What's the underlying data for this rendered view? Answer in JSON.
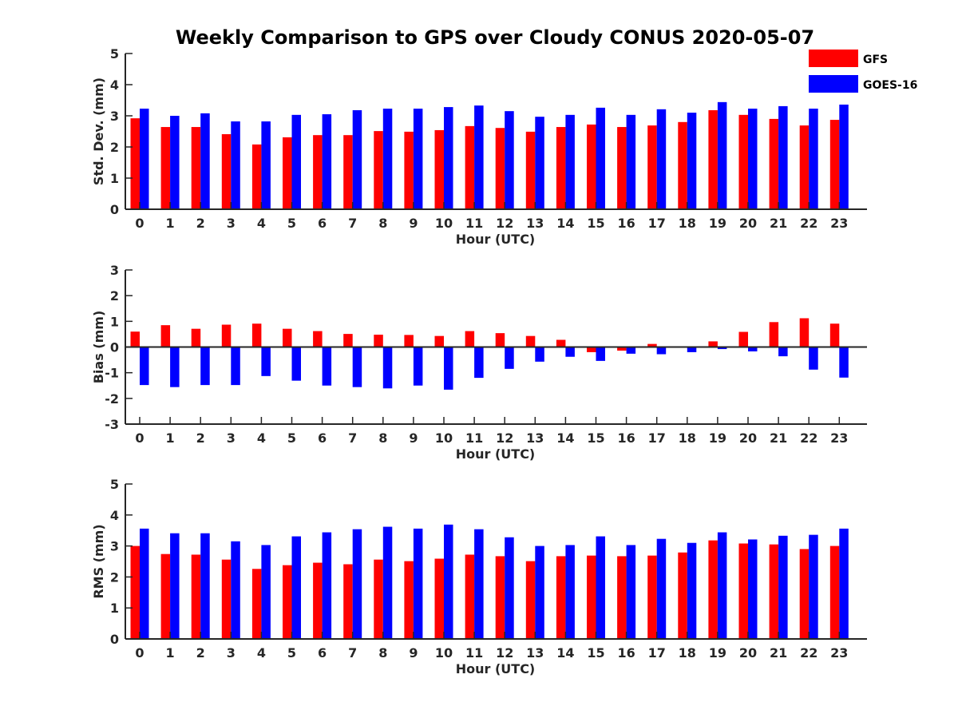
{
  "title": "Weekly Comparison to GPS over Cloudy CONUS 2020-05-07",
  "colors": {
    "GFS": "#ff0000",
    "GOES-16": "#0000ff",
    "axis": "#262626",
    "text": "#262626",
    "title": "#000000"
  },
  "legend": {
    "position": "top-right",
    "entries": [
      "GFS",
      "GOES-16"
    ]
  },
  "chart_data": [
    {
      "type": "bar",
      "xlabel": "Hour (UTC)",
      "ylabel": "Std. Dev. (mm)",
      "ylim": [
        0,
        5
      ],
      "yticks": [
        0,
        1,
        2,
        3,
        4,
        5
      ],
      "categories": [
        "0",
        "1",
        "2",
        "3",
        "4",
        "5",
        "6",
        "7",
        "8",
        "9",
        "10",
        "11",
        "12",
        "13",
        "14",
        "15",
        "16",
        "17",
        "18",
        "19",
        "20",
        "21",
        "22",
        "23"
      ],
      "series": [
        {
          "name": "GFS",
          "values": [
            2.92,
            2.64,
            2.64,
            2.41,
            2.08,
            2.31,
            2.38,
            2.38,
            2.51,
            2.49,
            2.54,
            2.67,
            2.61,
            2.49,
            2.64,
            2.72,
            2.64,
            2.69,
            2.8,
            3.18,
            3.03,
            2.9,
            2.69,
            2.87
          ]
        },
        {
          "name": "GOES-16",
          "values": [
            3.23,
            3.0,
            3.08,
            2.82,
            2.82,
            3.03,
            3.05,
            3.18,
            3.23,
            3.23,
            3.28,
            3.33,
            3.15,
            2.97,
            3.03,
            3.26,
            3.03,
            3.21,
            3.1,
            3.44,
            3.23,
            3.31,
            3.23,
            3.36
          ]
        }
      ]
    },
    {
      "type": "bar",
      "xlabel": "Hour (UTC)",
      "ylabel": "Bias (mm)",
      "ylim": [
        -3,
        3
      ],
      "yticks": [
        -3,
        -2,
        -1,
        0,
        1,
        2,
        3
      ],
      "categories": [
        "0",
        "1",
        "2",
        "3",
        "4",
        "5",
        "6",
        "7",
        "8",
        "9",
        "10",
        "11",
        "12",
        "13",
        "14",
        "15",
        "16",
        "17",
        "18",
        "19",
        "20",
        "21",
        "22",
        "23"
      ],
      "series": [
        {
          "name": "GFS",
          "values": [
            0.6,
            0.85,
            0.71,
            0.87,
            0.91,
            0.71,
            0.62,
            0.51,
            0.48,
            0.47,
            0.43,
            0.62,
            0.54,
            0.43,
            0.28,
            -0.2,
            -0.14,
            0.12,
            -0.03,
            0.22,
            0.59,
            0.97,
            1.12,
            0.91
          ]
        },
        {
          "name": "GOES-16",
          "values": [
            -1.48,
            -1.56,
            -1.48,
            -1.48,
            -1.13,
            -1.31,
            -1.5,
            -1.56,
            -1.61,
            -1.5,
            -1.66,
            -1.2,
            -0.85,
            -0.57,
            -0.38,
            -0.54,
            -0.26,
            -0.28,
            -0.2,
            -0.08,
            -0.17,
            -0.36,
            -0.88,
            -1.19
          ]
        }
      ]
    },
    {
      "type": "bar",
      "xlabel": "Hour (UTC)",
      "ylabel": "RMS (mm)",
      "ylim": [
        0,
        5
      ],
      "yticks": [
        0,
        1,
        2,
        3,
        4,
        5
      ],
      "categories": [
        "0",
        "1",
        "2",
        "3",
        "4",
        "5",
        "6",
        "7",
        "8",
        "9",
        "10",
        "11",
        "12",
        "13",
        "14",
        "15",
        "16",
        "17",
        "18",
        "19",
        "20",
        "21",
        "22",
        "23"
      ],
      "series": [
        {
          "name": "GFS",
          "values": [
            3.0,
            2.74,
            2.72,
            2.56,
            2.26,
            2.38,
            2.46,
            2.41,
            2.56,
            2.51,
            2.59,
            2.72,
            2.67,
            2.51,
            2.67,
            2.69,
            2.67,
            2.69,
            2.79,
            3.18,
            3.08,
            3.05,
            2.9,
            3.0
          ]
        },
        {
          "name": "GOES-16",
          "values": [
            3.56,
            3.41,
            3.41,
            3.15,
            3.03,
            3.31,
            3.44,
            3.54,
            3.62,
            3.56,
            3.69,
            3.54,
            3.28,
            3.0,
            3.03,
            3.31,
            3.03,
            3.23,
            3.1,
            3.44,
            3.21,
            3.33,
            3.36,
            3.56
          ]
        }
      ]
    }
  ]
}
